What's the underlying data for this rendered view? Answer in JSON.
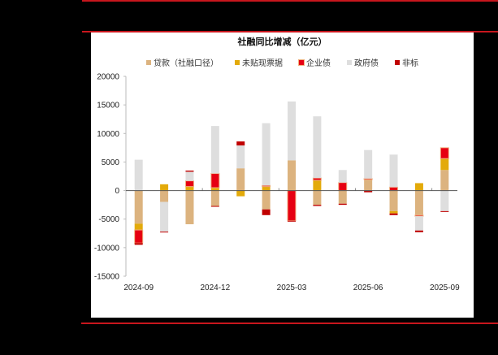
{
  "chart_data": {
    "type": "bar",
    "stacked": true,
    "title": "社融同比增减（亿元）",
    "xlabel": "",
    "ylabel": "",
    "ylim": [
      -15000,
      20000
    ],
    "yticks": [
      20000,
      15000,
      10000,
      5000,
      0,
      -5000,
      -10000,
      -15000
    ],
    "categories": [
      "2024-09",
      "2024-10",
      "2024-11",
      "2024-12",
      "2025-01",
      "2025-02",
      "2025-03",
      "2025-04",
      "2025-05",
      "2025-06",
      "2025-07",
      "2025-08",
      "2025-09"
    ],
    "xtick_labels": [
      "2024-09",
      "2024-12",
      "2025-03",
      "2025-06",
      "2025-09"
    ],
    "legend_position": "top",
    "grid": false,
    "series": [
      {
        "name": "贷款（社融口径）",
        "color": "#dcb37f",
        "values": [
          -5800,
          -2000,
          -5900,
          -2700,
          3900,
          -3300,
          5300,
          -2500,
          -2300,
          1900,
          -3600,
          -4300,
          3600
        ]
      },
      {
        "name": "未贴现票据",
        "color": "#e3aa0a",
        "values": [
          -1100,
          1100,
          700,
          500,
          -1000,
          700,
          0,
          1800,
          0,
          0,
          -400,
          1300,
          2000
        ]
      },
      {
        "name": "企业债",
        "color": "#e60012",
        "border": "#f0b080",
        "values": [
          -2300,
          0,
          1000,
          2500,
          0,
          200,
          -5300,
          400,
          1400,
          200,
          600,
          -200,
          1900
        ]
      },
      {
        "name": "政府债",
        "color": "#dedede",
        "values": [
          5400,
          -5200,
          1600,
          8300,
          4000,
          10900,
          10300,
          10800,
          2200,
          5000,
          5700,
          -2500,
          -3600
        ]
      },
      {
        "name": "非标",
        "color": "#c00000",
        "values": [
          -300,
          -100,
          200,
          -100,
          700,
          -1000,
          -100,
          -200,
          -200,
          -300,
          -300,
          -300,
          -100
        ]
      }
    ]
  },
  "page": {
    "title": "社融同比增减（亿元）"
  }
}
